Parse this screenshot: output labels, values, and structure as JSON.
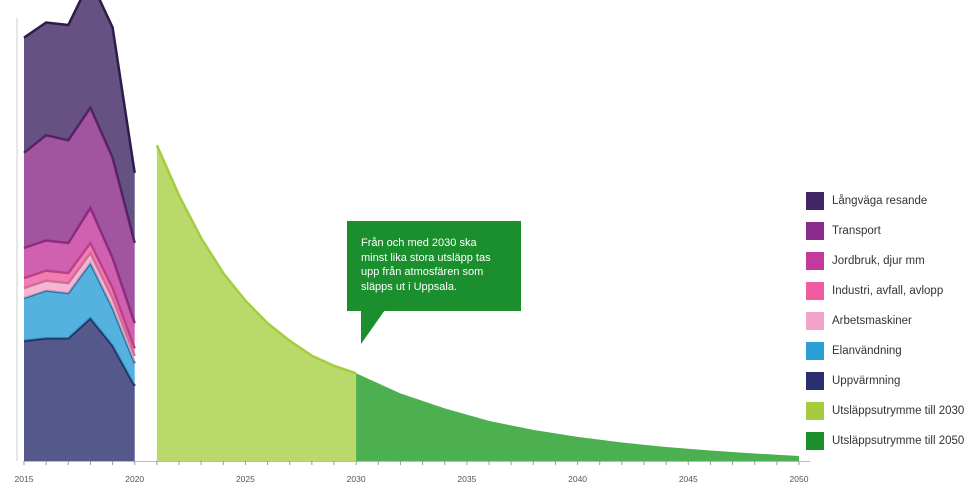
{
  "chart_data": {
    "type": "area",
    "title": "",
    "xlabel": "",
    "ylabel": "",
    "xlim": [
      2015,
      2050
    ],
    "ylim": [
      0,
      900
    ],
    "x_ticks": [
      "2015",
      "2020",
      "2025",
      "2030",
      "2035",
      "2040",
      "2045",
      "2050"
    ],
    "grid": false,
    "legend_position": "right",
    "stack_x": [
      2015,
      2016,
      2017,
      2018,
      2019,
      2020
    ],
    "series": [
      {
        "name": "Uppvärmning",
        "color": "#2b2e6e",
        "values": [
          240,
          245,
          245,
          285,
          230,
          150
        ]
      },
      {
        "name": "Elanvändning",
        "color": "#2a9fd6",
        "values": [
          85,
          95,
          90,
          110,
          75,
          45
        ]
      },
      {
        "name": "Arbetsmaskiner",
        "color": "#f4a3c8",
        "values": [
          20,
          20,
          20,
          20,
          20,
          15
        ]
      },
      {
        "name": "Industri, avfall, avlopp",
        "color": "#ef5ca0",
        "values": [
          20,
          20,
          20,
          20,
          20,
          15
        ]
      },
      {
        "name": "Jordbruk, djur mm",
        "color": "#c4399d",
        "values": [
          60,
          60,
          60,
          70,
          60,
          50
        ]
      },
      {
        "name": "Transport",
        "color": "#8a2a8a",
        "values": [
          190,
          210,
          205,
          200,
          200,
          160
        ]
      },
      {
        "name": "Långväga resande",
        "color": "#3f2563",
        "values": [
          230,
          225,
          230,
          255,
          260,
          140
        ]
      }
    ],
    "budget_series": [
      {
        "name": "Utsläppsutrymme till 2030",
        "color": "#b9d96a",
        "stroke": "#a5cc3f",
        "x": [
          2021,
          2022,
          2023,
          2024,
          2025,
          2026,
          2027,
          2028,
          2029,
          2030
        ],
        "values": [
          630,
          530,
          445,
          375,
          320,
          275,
          240,
          210,
          190,
          175
        ]
      },
      {
        "name": "Utsläppsutrymme till 2050",
        "color": "#4caf50",
        "x": [
          2030,
          2032,
          2034,
          2036,
          2038,
          2040,
          2042,
          2044,
          2046,
          2048,
          2050
        ],
        "values": [
          175,
          135,
          105,
          80,
          62,
          48,
          37,
          28,
          21,
          15,
          10
        ]
      }
    ],
    "annotation": {
      "lines": [
        "Från och med 2030 ska",
        "minst lika stora utsläpp tas",
        "upp från atmosfären som",
        "släpps ut i Uppsala."
      ],
      "color": "#1b8f2e"
    }
  }
}
